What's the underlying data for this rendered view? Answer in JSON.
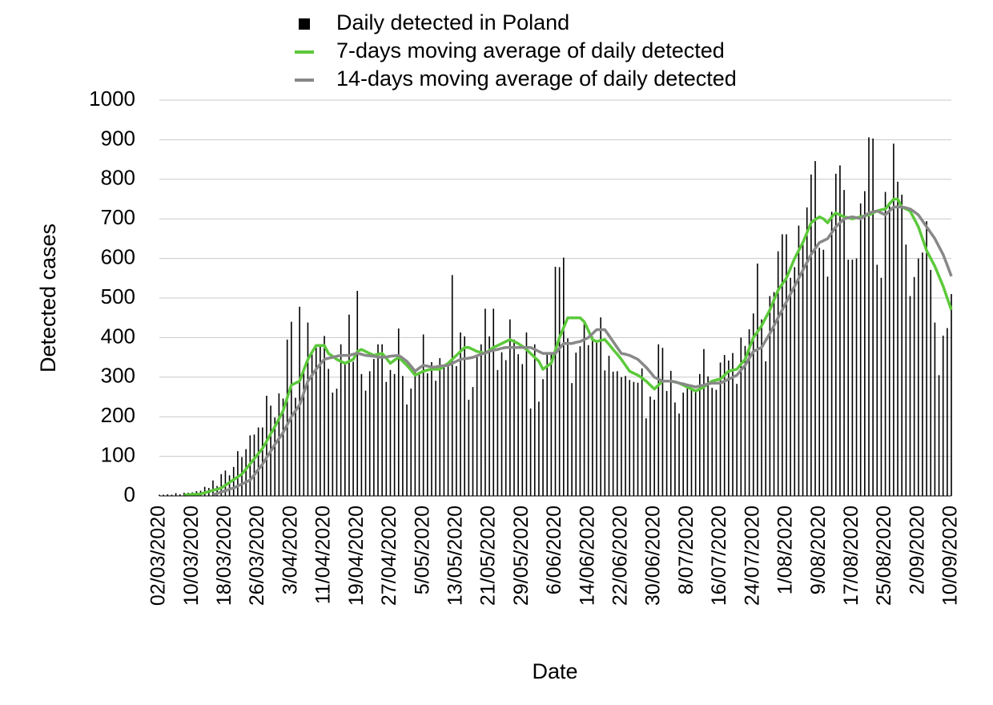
{
  "chart_data": {
    "type": "bar",
    "y_label": "Detected cases",
    "x_label": "Date",
    "categories": [
      "02/03/2020",
      null,
      null,
      null,
      null,
      null,
      null,
      null,
      "10/03/2020",
      null,
      null,
      null,
      null,
      null,
      null,
      null,
      "18/03/2020",
      null,
      null,
      null,
      null,
      null,
      null,
      null,
      "26/03/2020",
      null,
      null,
      null,
      null,
      null,
      null,
      null,
      "3/04/2020",
      null,
      null,
      null,
      null,
      null,
      null,
      null,
      "11/04/2020",
      null,
      null,
      null,
      null,
      null,
      null,
      null,
      "19/04/2020",
      null,
      null,
      null,
      null,
      null,
      null,
      null,
      "27/04/2020",
      null,
      null,
      null,
      null,
      null,
      null,
      null,
      "5/05/2020",
      null,
      null,
      null,
      null,
      null,
      null,
      null,
      "13/05/2020",
      null,
      null,
      null,
      null,
      null,
      null,
      null,
      "21/05/2020",
      null,
      null,
      null,
      null,
      null,
      null,
      null,
      "29/05/2020",
      null,
      null,
      null,
      null,
      null,
      null,
      null,
      "6/06/2020",
      null,
      null,
      null,
      null,
      null,
      null,
      null,
      "14/06/2020",
      null,
      null,
      null,
      null,
      null,
      null,
      null,
      "22/06/2020",
      null,
      null,
      null,
      null,
      null,
      null,
      null,
      "30/06/2020",
      null,
      null,
      null,
      null,
      null,
      null,
      null,
      "8/07/2020",
      null,
      null,
      null,
      null,
      null,
      null,
      null,
      "16/07/2020",
      null,
      null,
      null,
      null,
      null,
      null,
      null,
      "24/07/2020",
      null,
      null,
      null,
      null,
      null,
      null,
      null,
      "1/08/2020",
      null,
      null,
      null,
      null,
      null,
      null,
      null,
      "9/08/2020",
      null,
      null,
      null,
      null,
      null,
      null,
      null,
      "17/08/2020",
      null,
      null,
      null,
      null,
      null,
      null,
      null,
      "25/08/2020",
      null,
      null,
      null,
      null,
      null,
      null,
      null,
      "2/09/2020",
      null,
      null,
      null,
      null,
      null,
      null,
      null,
      "10/09/2020"
    ],
    "series": [
      {
        "name": "Daily detected in Poland",
        "type": "bar",
        "color": "#000000",
        "values": [
          0,
          0,
          1,
          0,
          4,
          1,
          5,
          5,
          6,
          9,
          10,
          20,
          17,
          36,
          22,
          52,
          61,
          49,
          70,
          110,
          95,
          115,
          150,
          152,
          170,
          170,
          250,
          225,
          195,
          256,
          243,
          392,
          437,
          245,
          475,
          312,
          435,
          355,
          372,
          380,
          401,
          318,
          258,
          268,
          380,
          336,
          455,
          336,
          515,
          305,
          263,
          312,
          343,
          380,
          380,
          285,
          315,
          305,
          420,
          300,
          228,
          268,
          315,
          310,
          405,
          307,
          335,
          288,
          345,
          325,
          330,
          555,
          325,
          410,
          400,
          240,
          272,
          350,
          380,
          470,
          400,
          470,
          315,
          360,
          340,
          443,
          392,
          355,
          330,
          410,
          218,
          380,
          235,
          292,
          360,
          360,
          576,
          575,
          599,
          395,
          282,
          359,
          375,
          440,
          378,
          400,
          385,
          448,
          314,
          351,
          311,
          312,
          297,
          300,
          290,
          285,
          283,
          319,
          193,
          248,
          240,
          380,
          371,
          262,
          313,
          233,
          205,
          258,
          278,
          270,
          262,
          305,
          368,
          299,
          270,
          265,
          334,
          353,
          339,
          358,
          280,
          397,
          376,
          418,
          458,
          584,
          443,
          337,
          502,
          512,
          615,
          658,
          658,
          548,
          575,
          680,
          640,
          726,
          809,
          843,
          624,
          619,
          551,
          715,
          811,
          832,
          770,
          594,
          594,
          597,
          736,
          767,
          903,
          900,
          581,
          548,
          765,
          729,
          887,
          791,
          758,
          632,
          502,
          550,
          597,
          612,
          691,
          568,
          435,
          302,
          402,
          421,
          507
        ]
      },
      {
        "name": "7-days moving average of daily detected",
        "type": "line",
        "color": "#5cc93b",
        "values": [
          null,
          null,
          null,
          null,
          null,
          null,
          2,
          3,
          4,
          4,
          5,
          8,
          11,
          14,
          17,
          20,
          27,
          34,
          41,
          48,
          55,
          68,
          81,
          94,
          107,
          120,
          138,
          157,
          175,
          195,
          215,
          248,
          280,
          285,
          290,
          318,
          345,
          363,
          380,
          380,
          380,
          360,
          353,
          345,
          340,
          335,
          340,
          345,
          365,
          370,
          365,
          360,
          355,
          358,
          360,
          348,
          335,
          343,
          350,
          340,
          330,
          318,
          305,
          310,
          315,
          318,
          320,
          320,
          320,
          328,
          335,
          345,
          355,
          365,
          375,
          375,
          370,
          365,
          363,
          360,
          368,
          375,
          380,
          385,
          390,
          395,
          390,
          385,
          378,
          370,
          360,
          350,
          340,
          320,
          328,
          335,
          368,
          400,
          425,
          450,
          450,
          450,
          450,
          440,
          418,
          395,
          390,
          393,
          395,
          383,
          370,
          358,
          345,
          330,
          315,
          310,
          305,
          298,
          290,
          280,
          270,
          280,
          290,
          290,
          290,
          288,
          285,
          280,
          275,
          270,
          265,
          270,
          275,
          283,
          290,
          293,
          295,
          305,
          315,
          318,
          320,
          333,
          345,
          373,
          400,
          415,
          430,
          450,
          470,
          495,
          520,
          535,
          550,
          575,
          600,
          620,
          640,
          665,
          690,
          698,
          705,
          700,
          690,
          705,
          715,
          710,
          705,
          703,
          700,
          703,
          705,
          708,
          710,
          715,
          720,
          723,
          725,
          738,
          750,
          750,
          730,
          725,
          720,
          700,
          680,
          650,
          620,
          600,
          580,
          555,
          530,
          500,
          470
        ]
      },
      {
        "name": "14-days moving average of daily detected",
        "type": "line",
        "color": "#888888",
        "values": [
          null,
          null,
          null,
          null,
          null,
          null,
          null,
          null,
          null,
          null,
          null,
          null,
          null,
          3,
          6,
          10,
          13,
          17,
          20,
          25,
          30,
          35,
          40,
          53,
          67,
          80,
          97,
          113,
          130,
          145,
          160,
          180,
          200,
          215,
          230,
          260,
          290,
          305,
          320,
          333,
          345,
          348,
          350,
          353,
          355,
          355,
          355,
          358,
          360,
          358,
          355,
          354,
          353,
          351,
          350,
          351,
          353,
          354,
          355,
          348,
          340,
          328,
          315,
          323,
          330,
          328,
          325,
          326,
          328,
          329,
          330,
          335,
          340,
          345,
          347,
          348,
          350,
          354,
          358,
          361,
          365,
          368,
          370,
          373,
          375,
          375,
          375,
          375,
          375,
          375,
          375,
          370,
          365,
          360,
          360,
          360,
          360,
          373,
          385,
          385,
          385,
          388,
          390,
          395,
          400,
          410,
          420,
          420,
          420,
          405,
          390,
          375,
          360,
          358,
          355,
          350,
          345,
          335,
          325,
          313,
          300,
          295,
          290,
          290,
          290,
          288,
          285,
          283,
          280,
          278,
          275,
          278,
          280,
          283,
          285,
          285,
          285,
          290,
          295,
          300,
          305,
          318,
          330,
          348,
          365,
          370,
          375,
          393,
          410,
          430,
          450,
          470,
          490,
          510,
          530,
          550,
          570,
          590,
          610,
          625,
          640,
          645,
          650,
          665,
          680,
          690,
          700,
          703,
          705,
          703,
          700,
          708,
          715,
          718,
          720,
          715,
          710,
          720,
          730,
          730,
          730,
          728,
          725,
          718,
          710,
          695,
          680,
          665,
          650,
          630,
          610,
          583,
          555
        ]
      }
    ],
    "ylim": [
      0,
      1000
    ],
    "yticks": [
      0,
      100,
      200,
      300,
      400,
      500,
      600,
      700,
      800,
      900,
      1000
    ],
    "grid": true,
    "legend": "top"
  }
}
